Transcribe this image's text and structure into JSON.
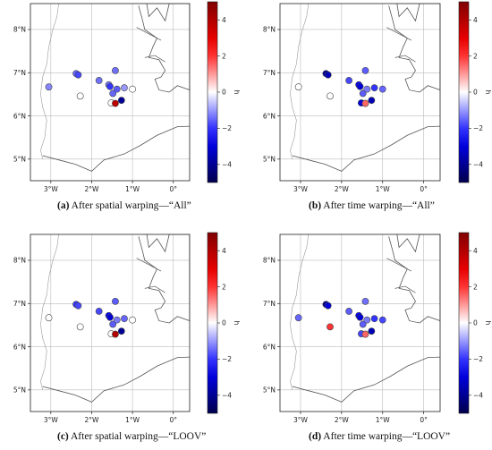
{
  "captions": [
    {
      "tag": "(a)",
      "text": " After spatial warping—“All”"
    },
    {
      "tag": "(b)",
      "text": " After time warping—“All”"
    },
    {
      "tag": "(c)",
      "text": " After spatial warping—“LOOV”"
    },
    {
      "tag": "(d)",
      "text": " After time warping—“LOOV”"
    }
  ],
  "chart_data": [
    {
      "type": "scatter",
      "title": "(a) After spatial warping—“All”",
      "x_ticks": [
        "3°W",
        "2°W",
        "1°W",
        "0°"
      ],
      "y_ticks": [
        "5°N",
        "6°N",
        "7°N",
        "8°N"
      ],
      "xlim": [
        -3.5,
        0.4
      ],
      "ylim": [
        4.5,
        8.6
      ],
      "colorbar": {
        "label": "h",
        "range": [
          -5,
          5
        ],
        "ticks": [
          "4",
          "2",
          "0",
          "−2",
          "−4"
        ],
        "cmap": "seismic"
      },
      "points": [
        {
          "lon": -3.05,
          "lat": 6.67,
          "h": -1.2
        },
        {
          "lon": -2.38,
          "lat": 6.98,
          "h": -1.5
        },
        {
          "lon": -2.33,
          "lat": 6.95,
          "h": -1.8
        },
        {
          "lon": -2.28,
          "lat": 6.46,
          "h": 0
        },
        {
          "lon": -1.82,
          "lat": 6.82,
          "h": -1.4
        },
        {
          "lon": -1.58,
          "lat": 6.72,
          "h": -1.3
        },
        {
          "lon": -1.55,
          "lat": 6.68,
          "h": -2.0
        },
        {
          "lon": -1.48,
          "lat": 6.52,
          "h": -1.5
        },
        {
          "lon": -1.52,
          "lat": 6.3,
          "h": 0
        },
        {
          "lon": -1.42,
          "lat": 7.05,
          "h": -1.4
        },
        {
          "lon": -1.38,
          "lat": 6.62,
          "h": -1.6
        },
        {
          "lon": -1.42,
          "lat": 6.29,
          "h": 3.8
        },
        {
          "lon": -1.27,
          "lat": 6.36,
          "h": -4.0
        },
        {
          "lon": -1.2,
          "lat": 6.65,
          "h": -1.0
        },
        {
          "lon": -1.0,
          "lat": 6.62,
          "h": 0
        }
      ]
    },
    {
      "type": "scatter",
      "title": "(b) After time warping—“All”",
      "x_ticks": [
        "3°W",
        "2°W",
        "1°W",
        "0°"
      ],
      "y_ticks": [
        "5°N",
        "6°N",
        "7°N",
        "8°N"
      ],
      "xlim": [
        -3.5,
        0.4
      ],
      "ylim": [
        4.5,
        8.6
      ],
      "colorbar": {
        "label": "h",
        "range": [
          -5,
          5
        ],
        "ticks": [
          "4",
          "2",
          "0",
          "−2",
          "−4"
        ],
        "cmap": "seismic"
      },
      "points": [
        {
          "lon": -3.05,
          "lat": 6.67,
          "h": 0
        },
        {
          "lon": -2.38,
          "lat": 6.98,
          "h": -4.0
        },
        {
          "lon": -2.33,
          "lat": 6.95,
          "h": -3.5
        },
        {
          "lon": -2.28,
          "lat": 6.46,
          "h": 0
        },
        {
          "lon": -1.82,
          "lat": 6.82,
          "h": -1.8
        },
        {
          "lon": -1.58,
          "lat": 6.72,
          "h": -2.5
        },
        {
          "lon": -1.55,
          "lat": 6.68,
          "h": -3.0
        },
        {
          "lon": -1.48,
          "lat": 6.52,
          "h": -1.6
        },
        {
          "lon": -1.52,
          "lat": 6.3,
          "h": -3.0
        },
        {
          "lon": -1.42,
          "lat": 7.05,
          "h": -1.6
        },
        {
          "lon": -1.38,
          "lat": 6.62,
          "h": -1.3
        },
        {
          "lon": -1.42,
          "lat": 6.29,
          "h": 1.5
        },
        {
          "lon": -1.27,
          "lat": 6.36,
          "h": -3.5
        },
        {
          "lon": -1.2,
          "lat": 6.65,
          "h": -2.0
        },
        {
          "lon": -1.0,
          "lat": 6.62,
          "h": -1.5
        }
      ]
    },
    {
      "type": "scatter",
      "title": "(c) After spatial warping—“LOOV”",
      "x_ticks": [
        "3°W",
        "2°W",
        "1°W",
        "0°"
      ],
      "y_ticks": [
        "5°N",
        "6°N",
        "7°N",
        "8°N"
      ],
      "xlim": [
        -3.5,
        0.4
      ],
      "ylim": [
        4.5,
        8.6
      ],
      "colorbar": {
        "label": "h",
        "range": [
          -5,
          5
        ],
        "ticks": [
          "4",
          "2",
          "0",
          "−2",
          "−4"
        ],
        "cmap": "seismic"
      },
      "points": [
        {
          "lon": -3.05,
          "lat": 6.67,
          "h": 0
        },
        {
          "lon": -2.38,
          "lat": 6.98,
          "h": -2.0
        },
        {
          "lon": -2.33,
          "lat": 6.95,
          "h": -1.8
        },
        {
          "lon": -2.28,
          "lat": 6.46,
          "h": 0
        },
        {
          "lon": -1.82,
          "lat": 6.82,
          "h": -1.8
        },
        {
          "lon": -1.58,
          "lat": 6.72,
          "h": -2.5
        },
        {
          "lon": -1.55,
          "lat": 6.68,
          "h": -3.0
        },
        {
          "lon": -1.48,
          "lat": 6.52,
          "h": -1.6
        },
        {
          "lon": -1.52,
          "lat": 6.3,
          "h": 0
        },
        {
          "lon": -1.42,
          "lat": 7.05,
          "h": -1.6
        },
        {
          "lon": -1.38,
          "lat": 6.62,
          "h": -1.3
        },
        {
          "lon": -1.42,
          "lat": 6.29,
          "h": 4.0
        },
        {
          "lon": -1.27,
          "lat": 6.36,
          "h": -4.0
        },
        {
          "lon": -1.2,
          "lat": 6.65,
          "h": -1.5
        },
        {
          "lon": -1.0,
          "lat": 6.62,
          "h": 0
        }
      ]
    },
    {
      "type": "scatter",
      "title": "(d) After time warping—“LOOV”",
      "x_ticks": [
        "3°W",
        "2°W",
        "1°W",
        "0°"
      ],
      "y_ticks": [
        "5°N",
        "6°N",
        "7°N",
        "8°N"
      ],
      "xlim": [
        -3.5,
        0.4
      ],
      "ylim": [
        4.5,
        8.6
      ],
      "colorbar": {
        "label": "h",
        "range": [
          -5,
          5
        ],
        "ticks": [
          "4",
          "2",
          "0",
          "−2",
          "−4"
        ],
        "cmap": "seismic"
      },
      "points": [
        {
          "lon": -3.05,
          "lat": 6.67,
          "h": -1.5
        },
        {
          "lon": -2.38,
          "lat": 6.98,
          "h": -4.0
        },
        {
          "lon": -2.33,
          "lat": 6.95,
          "h": -3.0
        },
        {
          "lon": -2.28,
          "lat": 6.46,
          "h": 2.0
        },
        {
          "lon": -1.82,
          "lat": 6.82,
          "h": -1.6
        },
        {
          "lon": -1.58,
          "lat": 6.72,
          "h": -2.5
        },
        {
          "lon": -1.55,
          "lat": 6.68,
          "h": -3.0
        },
        {
          "lon": -1.48,
          "lat": 6.52,
          "h": -1.6
        },
        {
          "lon": -1.52,
          "lat": 6.3,
          "h": -1.8
        },
        {
          "lon": -1.42,
          "lat": 7.05,
          "h": -1.4
        },
        {
          "lon": -1.38,
          "lat": 6.62,
          "h": -1.3
        },
        {
          "lon": -1.42,
          "lat": 6.29,
          "h": 1.5
        },
        {
          "lon": -1.27,
          "lat": 6.36,
          "h": -3.5
        },
        {
          "lon": -1.2,
          "lat": 6.65,
          "h": -2.0
        },
        {
          "lon": -1.0,
          "lat": 6.62,
          "h": -1.8
        }
      ]
    }
  ]
}
